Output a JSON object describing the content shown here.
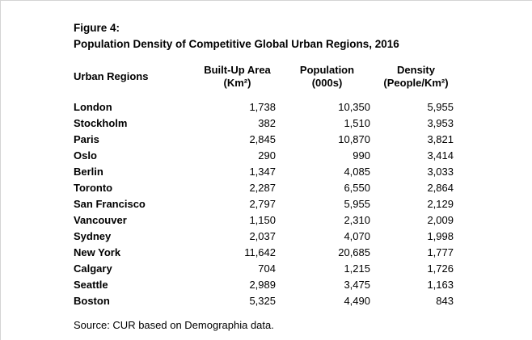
{
  "figure": {
    "label": "Figure 4:",
    "title": "Population Density of Competitive Global Urban Regions, 2016"
  },
  "table": {
    "columns": {
      "region": "Urban Regions",
      "area_line1": "Built-Up Area",
      "area_line2": "(Km²)",
      "population_line1": "Population",
      "population_line2": "(000s)",
      "density_line1": "Density",
      "density_line2": "(People/Km²)"
    },
    "rows": [
      {
        "region": "London",
        "area": "1,738",
        "population": "10,350",
        "density": "5,955"
      },
      {
        "region": "Stockholm",
        "area": "382",
        "population": "1,510",
        "density": "3,953"
      },
      {
        "region": "Paris",
        "area": "2,845",
        "population": "10,870",
        "density": "3,821"
      },
      {
        "region": "Oslo",
        "area": "290",
        "population": "990",
        "density": "3,414"
      },
      {
        "region": "Berlin",
        "area": "1,347",
        "population": "4,085",
        "density": "3,033"
      },
      {
        "region": "Toronto",
        "area": "2,287",
        "population": "6,550",
        "density": "2,864"
      },
      {
        "region": "San Francisco",
        "area": "2,797",
        "population": "5,955",
        "density": "2,129"
      },
      {
        "region": "Vancouver",
        "area": "1,150",
        "population": "2,310",
        "density": "2,009"
      },
      {
        "region": "Sydney",
        "area": "2,037",
        "population": "4,070",
        "density": "1,998"
      },
      {
        "region": "New York",
        "area": "11,642",
        "population": "20,685",
        "density": "1,777"
      },
      {
        "region": "Calgary",
        "area": "704",
        "population": "1,215",
        "density": "1,726"
      },
      {
        "region": "Seattle",
        "area": "2,989",
        "population": "3,475",
        "density": "1,163"
      },
      {
        "region": "Boston",
        "area": "5,325",
        "population": "4,490",
        "density": "843"
      }
    ]
  },
  "source": "Source: CUR based on Demographia data.",
  "colors": {
    "text": "#000000",
    "background": "#ffffff",
    "edge_border": "#d4d4d4"
  }
}
